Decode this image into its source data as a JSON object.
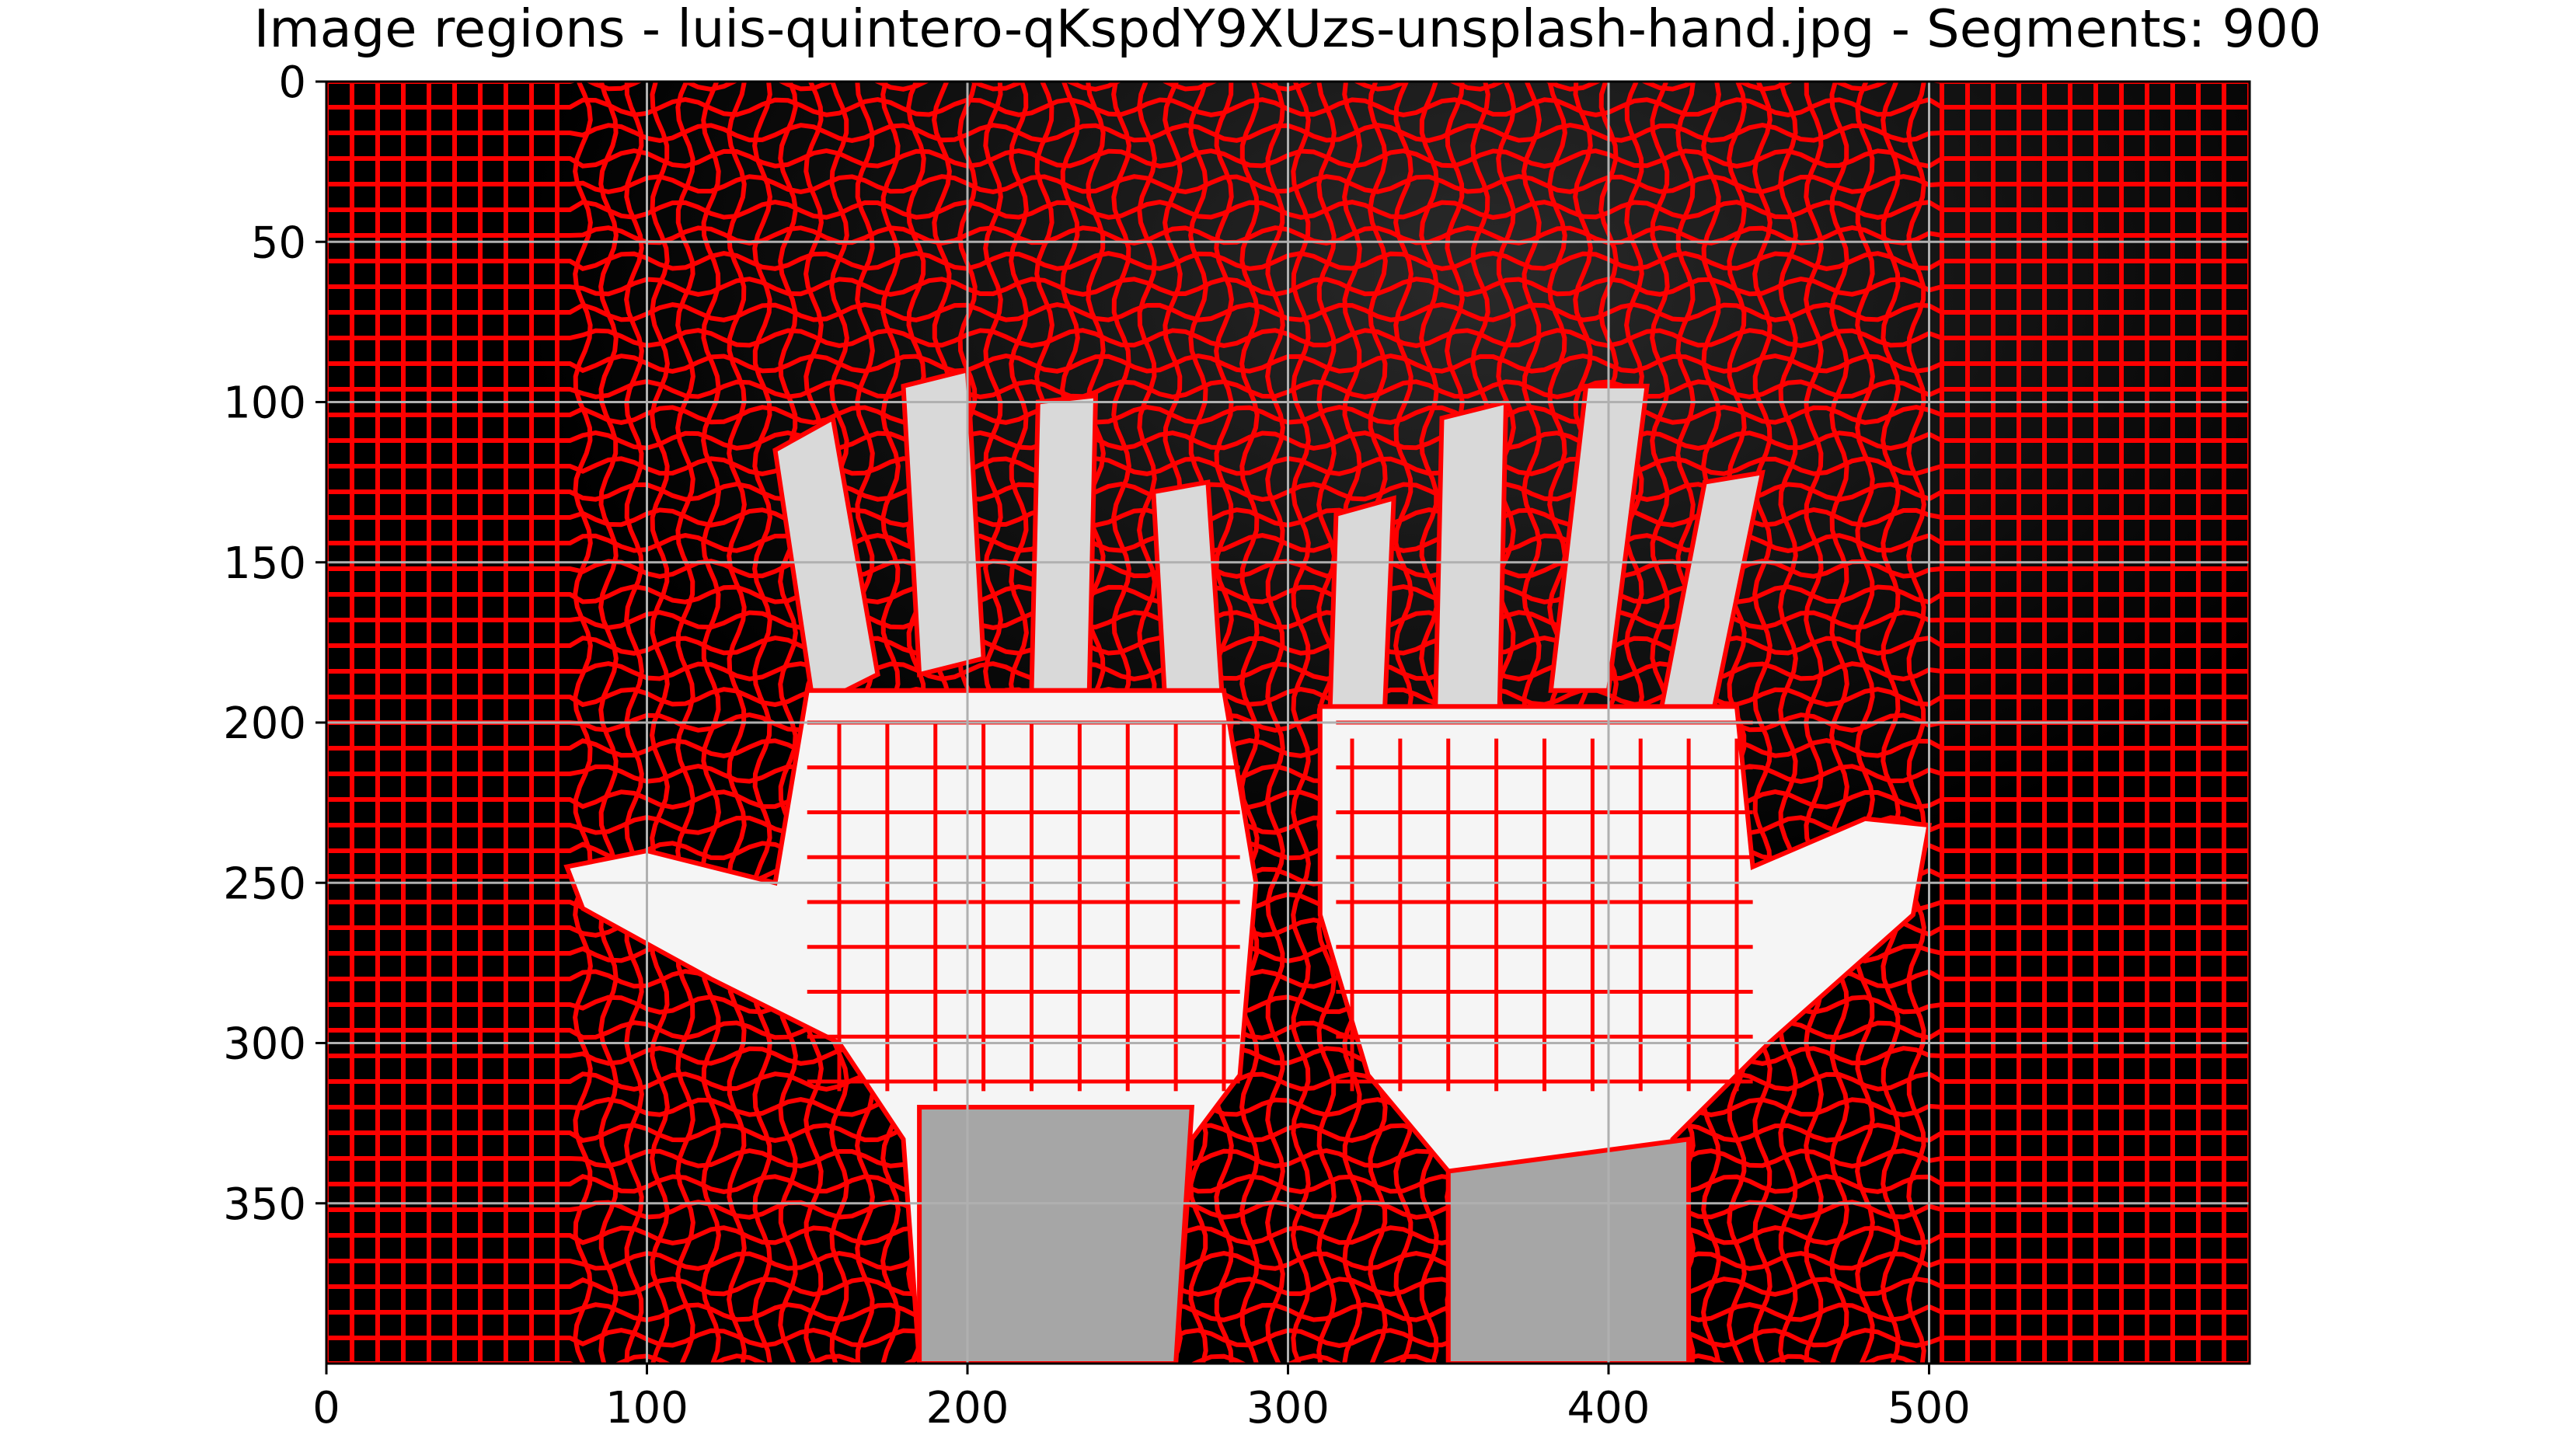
{
  "chart_data": {
    "type": "image",
    "title": "Image regions - luis-quintero-qKspdY9XUzs-unsplash-hand.jpg - Segments: 900",
    "xlabel": "",
    "ylabel": "",
    "xlim": [
      0,
      600
    ],
    "ylim": [
      400,
      0
    ],
    "xticks": [
      0,
      100,
      200,
      300,
      400,
      500
    ],
    "yticks": [
      0,
      50,
      100,
      150,
      200,
      250,
      300,
      350
    ],
    "grid": true,
    "grid_color": "#b0b0b0",
    "segment_boundary_color": "#ff0000",
    "background_color": "#000000",
    "hand_fill_colors": [
      "#f5f5f5",
      "#d9d9d9",
      "#a6a6a6",
      "#6e6e6e",
      "#4a4a4a"
    ],
    "segments": 900
  }
}
